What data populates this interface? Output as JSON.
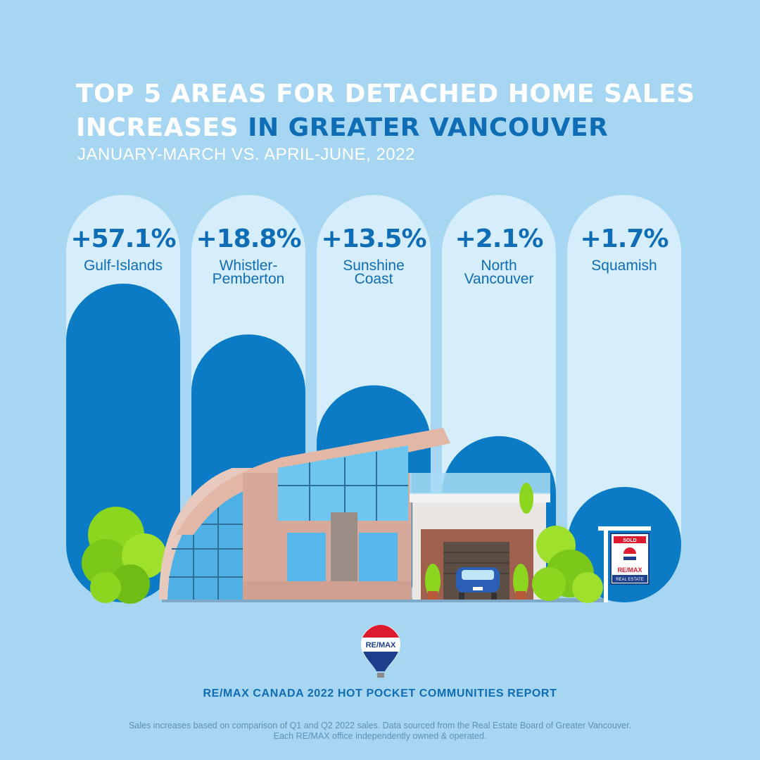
{
  "title_line1": "TOP 5 AREAS FOR DETACHED HOME SALES",
  "title_line2_white": "INCREASES",
  "title_line2_accent": "IN GREATER VANCOUVER",
  "subtitle": "JANUARY-MARCH VS. APRIL-JUNE, 2022",
  "chart_data": {
    "type": "bar",
    "categories": [
      "Gulf-Islands",
      "Whistler-Pemberton",
      "Sunshine Coast",
      "North Vancouver",
      "Squamish"
    ],
    "category_labels": [
      "Gulf-Islands",
      "Whistler-\nPemberton",
      "Sunshine\nCoast",
      "North\nVancouver",
      "Squamish"
    ],
    "values": [
      57.1,
      18.8,
      13.5,
      2.1,
      1.7
    ],
    "value_labels": [
      "+57.1%",
      "+18.8%",
      "+13.5%",
      "+2.1%",
      "+1.7%"
    ],
    "title": "TOP 5 AREAS FOR DETACHED HOME SALES INCREASES IN GREATER VANCOUVER",
    "subtitle": "JANUARY-MARCH VS. APRIL-JUNE, 2022",
    "unit": "%",
    "grid": false,
    "legend": "none",
    "colors": {
      "bar": "#0a7bc4",
      "track": "#d6eefb",
      "text": "#0f6db5"
    }
  },
  "illustration": {
    "sign_sold": "SOLD",
    "sign_brand": "RE/MAX",
    "sign_sub": "REAL ESTATE"
  },
  "logo_text": "RE/MAX",
  "report_title": "RE/MAX CANADA 2022 HOT POCKET COMMUNITIES REPORT",
  "footnote_line1": "Sales increases based on comparison of Q1 and Q2 2022 sales. Data sourced from the Real Estate Board of Greater Vancouver.",
  "footnote_line2": "Each RE/MAX office independently owned & operated.",
  "colors": {
    "background": "#a7d6f2",
    "accent": "#0f6db5",
    "brand_red": "#dc1c2e"
  }
}
